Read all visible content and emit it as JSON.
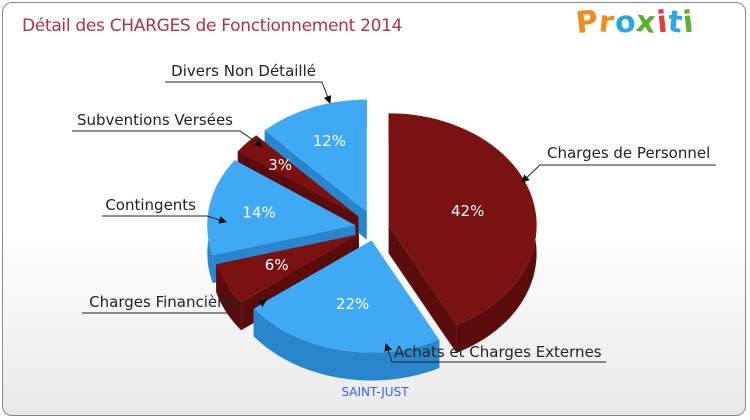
{
  "title": "Détail des CHARGES de Fonctionnement 2014",
  "logo": {
    "text": "Proxiti",
    "letters": [
      "P",
      "r",
      "o",
      "x",
      "i",
      "t",
      "i"
    ],
    "colors": [
      "#f28c1e",
      "#f28c1e",
      "#2aa8e0",
      "#58b22d",
      "#e23c3c",
      "#2aa8e0",
      "#58b22d"
    ]
  },
  "city": "SAINT-JUST",
  "colors": {
    "red_top": "#7a1212",
    "red_side": "#5a0c0c",
    "blue_top": "#3fa9f5",
    "blue_side": "#2a86cc",
    "title": "#b0304a"
  },
  "chart_data": {
    "type": "pie",
    "title": "Détail des CHARGES de Fonctionnement 2014",
    "style": "3d-exploded",
    "slices": [
      {
        "label": "Charges de Personnel",
        "value": 42,
        "pct_label": "42%",
        "color": "red"
      },
      {
        "label": "Achats et Charges Externes",
        "value": 22,
        "pct_label": "22%",
        "color": "blue"
      },
      {
        "label": "Charges Financières",
        "value": 6,
        "pct_label": "6%",
        "color": "red"
      },
      {
        "label": "Contingents",
        "value": 14,
        "pct_label": "14%",
        "color": "blue"
      },
      {
        "label": "Subventions Versées",
        "value": 3,
        "pct_label": "3%",
        "color": "red"
      },
      {
        "label": "Divers Non Détaillé",
        "value": 12,
        "pct_label": "12%",
        "color": "blue"
      }
    ]
  }
}
